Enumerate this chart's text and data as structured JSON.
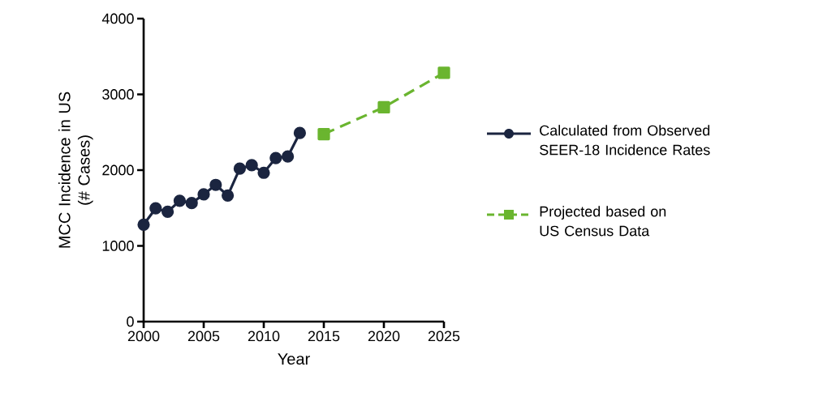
{
  "chart_data": {
    "type": "line",
    "xlabel": "Year",
    "ylabel": "MCC Incidence in US\n(# Cases)",
    "xlim": [
      2000,
      2025
    ],
    "xticks": [
      2000,
      2005,
      2010,
      2015,
      2020,
      2025
    ],
    "ylim": [
      0,
      4000
    ],
    "yticks": [
      0,
      1000,
      2000,
      3000,
      4000
    ],
    "grid": false,
    "legend": "right",
    "series": [
      {
        "name": "Calculated from Observed\nSEER-18 Incidence Rates",
        "color": "#1b2540",
        "marker": "circle",
        "line_style": "solid",
        "x": [
          2000,
          2001,
          2002,
          2003,
          2004,
          2005,
          2006,
          2007,
          2008,
          2009,
          2010,
          2011,
          2012,
          2013
        ],
        "values": [
          1280,
          1495,
          1450,
          1595,
          1565,
          1680,
          1805,
          1665,
          2020,
          2065,
          1965,
          2160,
          2180,
          2490
        ]
      },
      {
        "name": "Projected based on\nUS Census Data",
        "color": "#6ab52f",
        "marker": "square",
        "line_style": "dashed",
        "x": [
          2015,
          2020,
          2025
        ],
        "values": [
          2475,
          2830,
          3285
        ]
      }
    ]
  }
}
